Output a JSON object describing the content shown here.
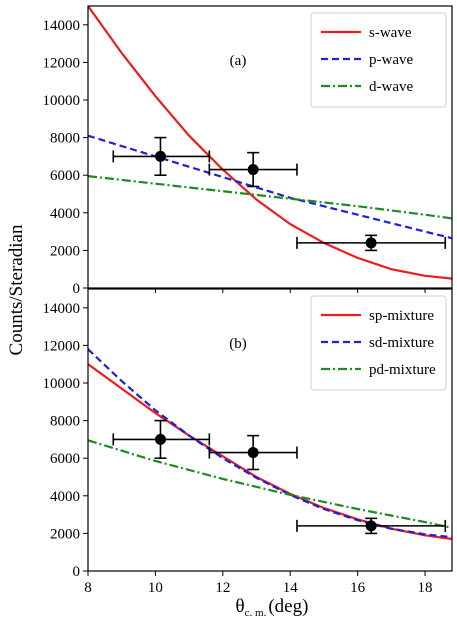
{
  "figure": {
    "ylabel": "Counts/Steradian",
    "xlabel_main": "θ",
    "xlabel_sub": "c. m.",
    "xlabel_unit": "(deg)"
  },
  "chart_data": [
    {
      "type": "line",
      "panel_label": "(a)",
      "xlim": [
        8,
        18.8
      ],
      "ylim": [
        0,
        15000
      ],
      "x_ticks": [
        8,
        10,
        12,
        14,
        16,
        18
      ],
      "y_ticks": [
        0,
        2000,
        4000,
        6000,
        8000,
        10000,
        12000,
        14000
      ],
      "legend_position": "top-right",
      "series": [
        {
          "name": "s-wave",
          "color": "#ee1c1c",
          "dash": "solid",
          "x": [
            8,
            9,
            10,
            11,
            12,
            13,
            14,
            15,
            16,
            17,
            18,
            18.8
          ],
          "y": [
            15000,
            12500,
            10200,
            8100,
            6300,
            4700,
            3400,
            2400,
            1600,
            1000,
            650,
            500
          ]
        },
        {
          "name": "p-wave",
          "color": "#1f1fdd",
          "dash": "dashed",
          "x": [
            8,
            10,
            12,
            14,
            16,
            18,
            18.8
          ],
          "y": [
            8100,
            7000,
            5900,
            4800,
            3900,
            3000,
            2650
          ]
        },
        {
          "name": "d-wave",
          "color": "#1e8c1e",
          "dash": "dashdot",
          "x": [
            8,
            10,
            12,
            14,
            16,
            18,
            18.8
          ],
          "y": [
            5950,
            5550,
            5150,
            4750,
            4350,
            3900,
            3700
          ]
        }
      ],
      "points": [
        {
          "x": 10.15,
          "y": 7000,
          "xerr": [
            8.75,
            11.6
          ],
          "yerr": [
            6000,
            8000
          ]
        },
        {
          "x": 12.9,
          "y": 6300,
          "xerr": [
            11.6,
            14.2
          ],
          "yerr": [
            5400,
            7200
          ]
        },
        {
          "x": 16.4,
          "y": 2400,
          "xerr": [
            14.2,
            18.6
          ],
          "yerr": [
            2000,
            2800
          ]
        }
      ]
    },
    {
      "type": "line",
      "panel_label": "(b)",
      "xlim": [
        8,
        18.8
      ],
      "ylim": [
        0,
        15000
      ],
      "x_ticks": [
        8,
        10,
        12,
        14,
        16,
        18
      ],
      "y_ticks": [
        0,
        2000,
        4000,
        6000,
        8000,
        10000,
        12000,
        14000
      ],
      "legend_position": "top-right",
      "series": [
        {
          "name": "sp-mixture",
          "color": "#ee1c1c",
          "dash": "solid",
          "x": [
            8,
            9,
            10,
            11,
            12,
            13,
            14,
            15,
            16,
            17,
            18,
            18.8
          ],
          "y": [
            11000,
            9700,
            8400,
            7200,
            6100,
            5000,
            4100,
            3350,
            2750,
            2250,
            1900,
            1700
          ]
        },
        {
          "name": "sd-mixture",
          "color": "#1f1fdd",
          "dash": "dashed",
          "x": [
            8,
            9,
            10,
            11,
            12,
            13,
            14,
            15,
            16,
            17,
            18,
            18.8
          ],
          "y": [
            11800,
            10100,
            8550,
            7200,
            6000,
            4950,
            4050,
            3300,
            2700,
            2250,
            1950,
            1800
          ]
        },
        {
          "name": "pd-mixture",
          "color": "#1e8c1e",
          "dash": "dashdot",
          "x": [
            8,
            10,
            12,
            14,
            16,
            18,
            18.8
          ],
          "y": [
            6950,
            5850,
            4900,
            4050,
            3300,
            2600,
            2300
          ]
        }
      ],
      "points": [
        {
          "x": 10.15,
          "y": 7000,
          "xerr": [
            8.75,
            11.6
          ],
          "yerr": [
            6000,
            8000
          ]
        },
        {
          "x": 12.9,
          "y": 6300,
          "xerr": [
            11.6,
            14.2
          ],
          "yerr": [
            5400,
            7200
          ]
        },
        {
          "x": 16.4,
          "y": 2400,
          "xerr": [
            14.2,
            18.6
          ],
          "yerr": [
            2000,
            2800
          ]
        }
      ]
    }
  ]
}
